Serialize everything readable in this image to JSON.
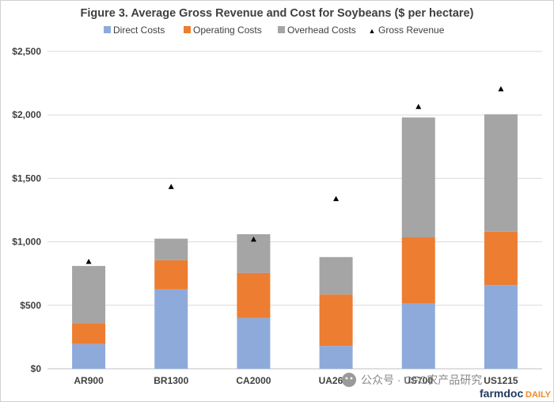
{
  "chart_data": {
    "type": "bar",
    "stacked": true,
    "title": "Figure  3. Average Gross Revenue and Cost for Soybeans ($ per hectare)",
    "categories": [
      "AR900",
      "BR1300",
      "CA2000",
      "UA2600",
      "US700",
      "US1215"
    ],
    "series": [
      {
        "name": "Direct Costs",
        "color": "#8eaadb",
        "values": [
          195,
          625,
          400,
          180,
          515,
          660
        ]
      },
      {
        "name": "Operating Costs",
        "color": "#ed7d31",
        "values": [
          165,
          230,
          355,
          405,
          520,
          420
        ]
      },
      {
        "name": "Overhead Costs",
        "color": "#a5a5a5",
        "values": [
          450,
          170,
          305,
          295,
          945,
          925
        ]
      }
    ],
    "markers": {
      "name": "Gross Revenue",
      "symbol": "▲",
      "color": "#000000",
      "values": [
        845,
        1435,
        1020,
        1340,
        2065,
        2205
      ]
    },
    "yticks": [
      0,
      500,
      1000,
      1500,
      2000,
      2500
    ],
    "ytick_labels": [
      "$0",
      "$500",
      "$1,000",
      "$1,500",
      "$2,000",
      "$2,500"
    ],
    "ylim": [
      0,
      2500
    ],
    "grid": true,
    "legend_position": "top"
  },
  "watermark": {
    "icon": "wechat-icon",
    "text": "公众号 · CFC农产品研究"
  },
  "brand": {
    "main": "farmdoc",
    "sub": "DAILY"
  }
}
